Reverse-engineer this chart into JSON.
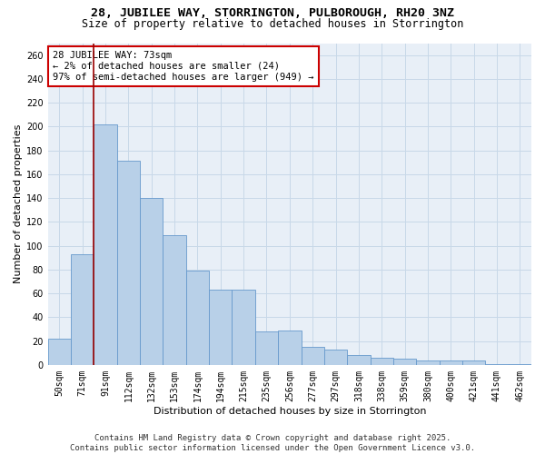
{
  "title_line1": "28, JUBILEE WAY, STORRINGTON, PULBOROUGH, RH20 3NZ",
  "title_line2": "Size of property relative to detached houses in Storrington",
  "xlabel": "Distribution of detached houses by size in Storrington",
  "ylabel": "Number of detached properties",
  "categories": [
    "50sqm",
    "71sqm",
    "91sqm",
    "112sqm",
    "132sqm",
    "153sqm",
    "174sqm",
    "194sqm",
    "215sqm",
    "235sqm",
    "256sqm",
    "277sqm",
    "297sqm",
    "318sqm",
    "338sqm",
    "359sqm",
    "380sqm",
    "400sqm",
    "421sqm",
    "441sqm",
    "462sqm"
  ],
  "values": [
    22,
    93,
    202,
    171,
    140,
    109,
    79,
    63,
    63,
    28,
    29,
    15,
    13,
    8,
    6,
    5,
    4,
    4,
    4,
    1,
    1
  ],
  "bar_color": "#b8d0e8",
  "bar_edge_color": "#6699cc",
  "vline_x": 1.5,
  "vline_color": "#990000",
  "annotation_title": "28 JUBILEE WAY: 73sqm",
  "annotation_line2": "← 2% of detached houses are smaller (24)",
  "annotation_line3": "97% of semi-detached houses are larger (949) →",
  "annotation_box_edge": "#cc0000",
  "annotation_box_face": "#ffffff",
  "ylim": [
    0,
    270
  ],
  "yticks": [
    0,
    20,
    40,
    60,
    80,
    100,
    120,
    140,
    160,
    180,
    200,
    220,
    240,
    260
  ],
  "grid_color": "#c8d8e8",
  "background_color": "#e8eff7",
  "footer_line1": "Contains HM Land Registry data © Crown copyright and database right 2025.",
  "footer_line2": "Contains public sector information licensed under the Open Government Licence v3.0.",
  "title_fontsize": 9.5,
  "subtitle_fontsize": 8.5,
  "axis_label_fontsize": 8,
  "tick_fontsize": 7,
  "annotation_fontsize": 7.5,
  "footer_fontsize": 6.5
}
